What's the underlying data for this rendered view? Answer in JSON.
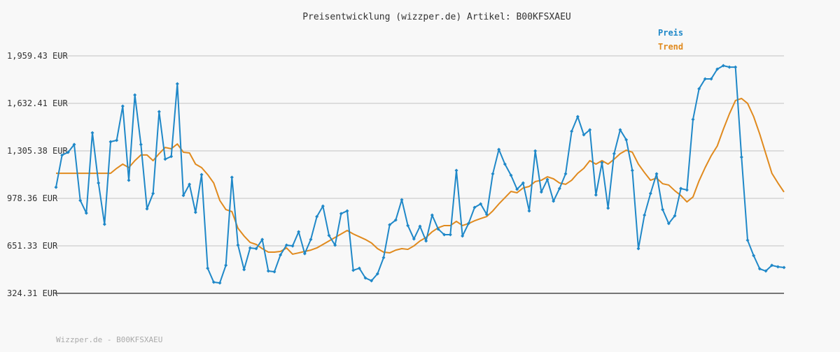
{
  "chart_data": {
    "type": "line",
    "title": "Preisentwicklung (wizzper.de) Artikel: B00KFSXAEU",
    "footer": "Wizzper.de - B00KFSXAEU",
    "ylim": [
      324.31,
      1959.43
    ],
    "yticks": [
      {
        "value": 324.31,
        "label": "324.31 EUR"
      },
      {
        "value": 651.33,
        "label": "651.33 EUR"
      },
      {
        "value": 978.36,
        "label": "978.36 EUR"
      },
      {
        "value": 1305.38,
        "label": "1,305.38 EUR"
      },
      {
        "value": 1632.41,
        "label": "1,632.41 EUR"
      },
      {
        "value": 1959.43,
        "label": "1,959.43 EUR"
      }
    ],
    "grid": true,
    "legend": "top-right",
    "series": [
      {
        "name": "Preis",
        "color": "#1f88c8",
        "markers": true,
        "values": [
          1055,
          1276,
          1296,
          1349,
          964,
          877,
          1430,
          1084,
          800,
          1368,
          1378,
          1613,
          1103,
          1690,
          1349,
          906,
          1012,
          1575,
          1248,
          1267,
          1767,
          998,
          1075,
          882,
          1142,
          497,
          401,
          396,
          517,
          1123,
          656,
          488,
          637,
          632,
          695,
          478,
          473,
          589,
          656,
          651,
          748,
          598,
          695,
          853,
          925,
          723,
          656,
          873,
          892,
          483,
          497,
          430,
          411,
          459,
          570,
          796,
          829,
          969,
          791,
          699,
          786,
          685,
          863,
          767,
          728,
          728,
          1171,
          719,
          805,
          916,
          940,
          868,
          1147,
          1315,
          1214,
          1137,
          1041,
          1084,
          892,
          1305,
          1022,
          1108,
          959,
          1046,
          1147,
          1440,
          1541,
          1416,
          1450,
          1002,
          1224,
          911,
          1286,
          1450,
          1382,
          1171,
          632,
          863,
          1012,
          1147,
          901,
          805,
          858,
          1046,
          1036,
          1522,
          1733,
          1801,
          1801,
          1868,
          1892,
          1882,
          1882,
          1262,
          690,
          584,
          493,
          478,
          517,
          507,
          502
        ]
      },
      {
        "name": "Trend",
        "color": "#e08a1e",
        "markers": false,
        "values": [
          1151,
          1151,
          1151,
          1151,
          1151,
          1151,
          1151,
          1151,
          1151,
          1151,
          1185,
          1214,
          1190,
          1238,
          1277,
          1277,
          1238,
          1286,
          1329,
          1320,
          1353,
          1296,
          1291,
          1214,
          1190,
          1142,
          1084,
          964,
          901,
          887,
          772,
          719,
          675,
          661,
          632,
          608,
          608,
          613,
          637,
          594,
          603,
          613,
          622,
          637,
          661,
          685,
          709,
          733,
          757,
          733,
          714,
          695,
          671,
          632,
          608,
          603,
          622,
          632,
          627,
          651,
          685,
          709,
          748,
          776,
          791,
          791,
          820,
          791,
          805,
          824,
          839,
          853,
          892,
          940,
          983,
          1026,
          1017,
          1050,
          1060,
          1094,
          1103,
          1127,
          1113,
          1084,
          1075,
          1103,
          1151,
          1185,
          1238,
          1214,
          1238,
          1214,
          1248,
          1286,
          1310,
          1296,
          1214,
          1156,
          1103,
          1118,
          1079,
          1070,
          1031,
          998,
          954,
          988,
          1099,
          1190,
          1272,
          1339,
          1454,
          1560,
          1652,
          1666,
          1632,
          1541,
          1421,
          1286,
          1151,
          1084,
          1022
        ]
      }
    ]
  }
}
